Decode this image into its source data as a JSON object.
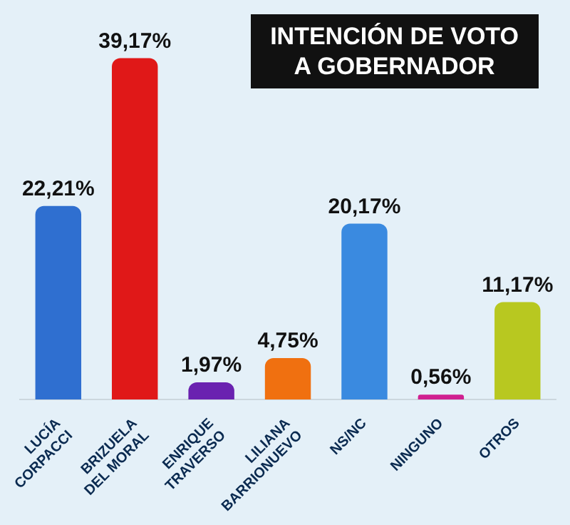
{
  "chart_data": {
    "type": "bar",
    "title": "INTENCIÓN DE VOTO\nA GOBERNADOR",
    "categories": [
      "LUCÍA\nCORPACCI",
      "BRIZUELA\nDEL MORAL",
      "ENRIQUE\nTRAVERSO",
      "LILIANA\nBARRIONUEVO",
      "NS/NC",
      "NINGUNO",
      "OTROS"
    ],
    "values": [
      22.21,
      39.17,
      1.97,
      4.75,
      20.17,
      0.56,
      11.17
    ],
    "value_labels": [
      "22,21%",
      "39,17%",
      "1,97%",
      "4,75%",
      "20,17%",
      "0,56%",
      "11,17%"
    ],
    "colors": [
      "#2f6fd0",
      "#e01818",
      "#6a22b0",
      "#f07010",
      "#3a8ae0",
      "#d02090",
      "#b8c820"
    ]
  }
}
